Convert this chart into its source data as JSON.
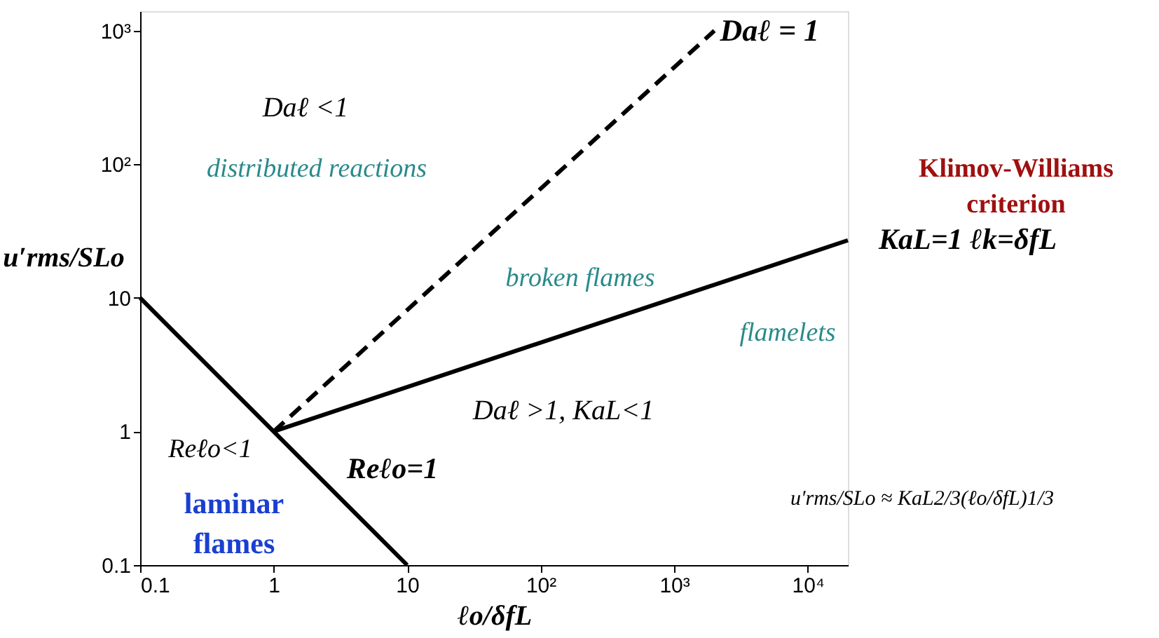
{
  "chart_data": {
    "type": "line",
    "xlabel": "ℓo/δfL",
    "ylabel": "u′rms/SLo",
    "log": "xy",
    "grid": false,
    "marker": "none",
    "xlim": [
      0.1,
      20000
    ],
    "ylim": [
      0.1,
      1400
    ],
    "xticks": [
      0.1,
      1,
      10,
      {
        "value": 100,
        "label": "10²"
      },
      {
        "value": 1000,
        "label": "10³"
      },
      {
        "value": 10000,
        "label": "10⁴"
      }
    ],
    "yticks": [
      0.1,
      1,
      10,
      {
        "value": 100,
        "label": "10²"
      },
      {
        "value": 1000,
        "label": "10³"
      }
    ],
    "series": [
      {
        "color": "#000000",
        "x": [
          0.1,
          10
        ],
        "values": [
          10,
          0.1
        ],
        "line_style": "solid"
      },
      {
        "color": "#000000",
        "x": [
          1,
          2000
        ],
        "values": [
          1,
          1000
        ],
        "line_style": "dashed"
      },
      {
        "color": "#000000",
        "x": [
          1,
          20000
        ],
        "values": [
          1,
          27
        ],
        "line_style": "solid"
      }
    ],
    "annotations": [
      "Reℓo=1",
      {
        "text": "Daℓ = 1",
        "x": 2000,
        "y": 1000
      },
      {
        "text": "KaL=1 ℓk=δfL",
        "x": 20000,
        "y": 27
      },
      "Daℓ <1",
      "distributed reactions",
      "broken flames",
      "flamelets",
      "Daℓ >1, KaL<1",
      "Reℓo<1",
      "laminar flames",
      "Klimov-Williams criterion",
      "u′rms/SLo ≈ KaL2/3(ℓo/δfL)1/3"
    ]
  }
}
